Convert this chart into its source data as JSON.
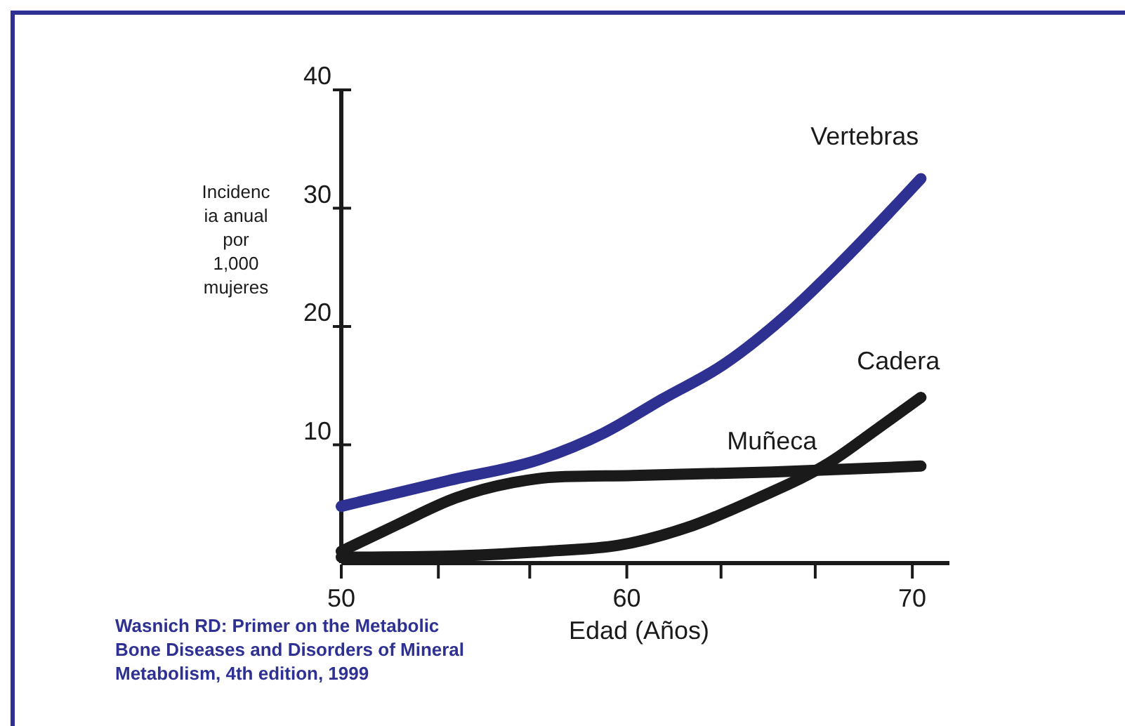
{
  "chart_data": {
    "type": "line",
    "xlabel": "Edad (Años)",
    "ylabel": "Incidenc\nia anual\npor\n1,000\nmujeres",
    "xlim": [
      50,
      71.3
    ],
    "xticks": [
      50,
      {
        "value": 53.4,
        "label": null
      },
      {
        "value": 56.6,
        "label": null
      },
      60,
      {
        "value": 63.3,
        "label": null
      },
      {
        "value": 66.6,
        "label": null
      },
      70
    ],
    "ylim": [
      0,
      40
    ],
    "yticks": [
      10,
      20,
      30,
      40
    ],
    "grid": false,
    "line_style": "solid",
    "series": [
      {
        "name": "Vertebras",
        "color": "#2e3192",
        "x": [
          50,
          53.8,
          57,
          59.2,
          61.2,
          63.4,
          65.6,
          67.5,
          70.3
        ],
        "values": [
          4.8,
          7,
          8.8,
          11,
          13.8,
          16.8,
          21,
          25.4,
          32.5
        ]
      },
      {
        "name": "Cadera",
        "color": "#1a1a1a",
        "x": [
          50,
          53.8,
          57.2,
          59.7,
          62.1,
          64.6,
          67.1,
          68.8,
          70.3
        ],
        "values": [
          0.5,
          0.6,
          1,
          1.5,
          3,
          5.5,
          8.5,
          11.4,
          14
        ]
      },
      {
        "name": "Muñeca",
        "color": "#1a1a1a",
        "x": [
          50,
          52,
          54,
          56,
          57.7,
          60.2,
          65.1,
          70.3
        ],
        "values": [
          1,
          3.3,
          5.5,
          6.8,
          7.3,
          7.4,
          7.7,
          8.2
        ]
      }
    ],
    "annotations": [
      "Wasnich RD: Primer on the Metabolic\nBone Diseases and Disorders of Mineral\nMetabolism, 4th edition, 1999"
    ]
  }
}
